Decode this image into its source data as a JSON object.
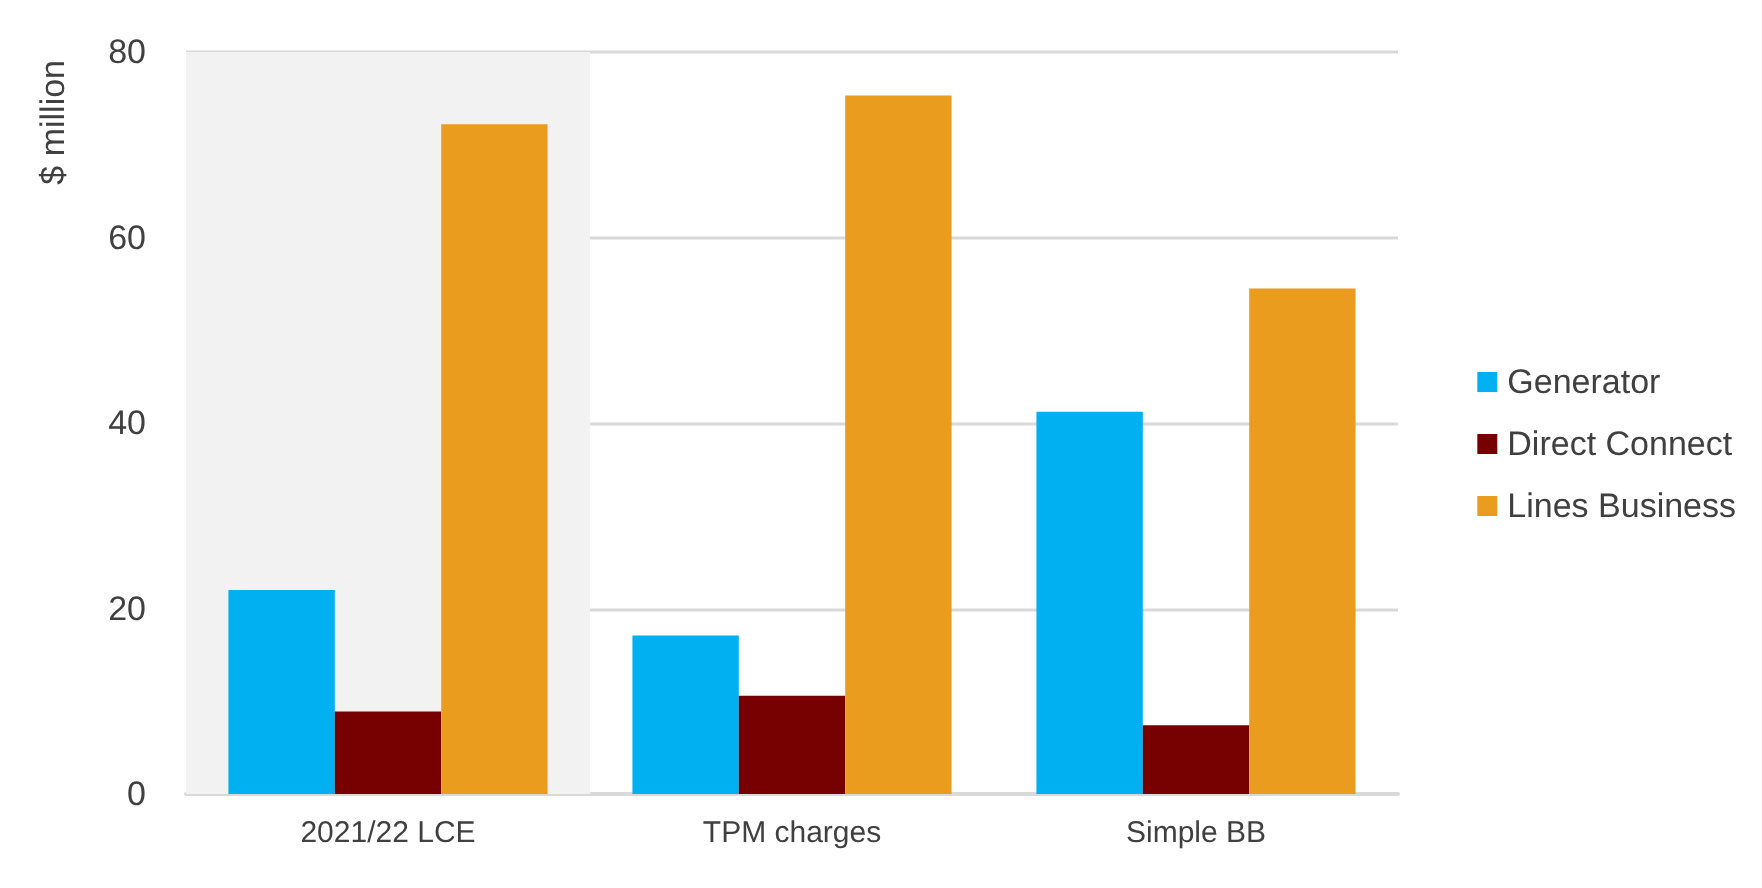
{
  "chart_data": {
    "type": "bar",
    "ylabel": "$ million",
    "categories": [
      "2021/22 LCE",
      "TPM charges",
      "Simple BB"
    ],
    "series": [
      {
        "name": "Generator",
        "color": "#00b0f0",
        "values": [
          22.0,
          17.1,
          41.2
        ]
      },
      {
        "name": "Direct Connect",
        "color": "#770000",
        "values": [
          8.9,
          10.6,
          7.4
        ]
      },
      {
        "name": "Lines Business",
        "color": "#e99c1e",
        "values": [
          72.2,
          75.3,
          54.5
        ]
      }
    ],
    "ylim": [
      0,
      80
    ],
    "yticks": [
      0,
      20,
      40,
      60,
      80
    ],
    "grid": "y",
    "legend": "right",
    "bands": [
      {
        "axis": "x",
        "from": "2021/22 LCE",
        "to": "2021/22 LCE",
        "color": "#f2f2f2"
      }
    ]
  }
}
